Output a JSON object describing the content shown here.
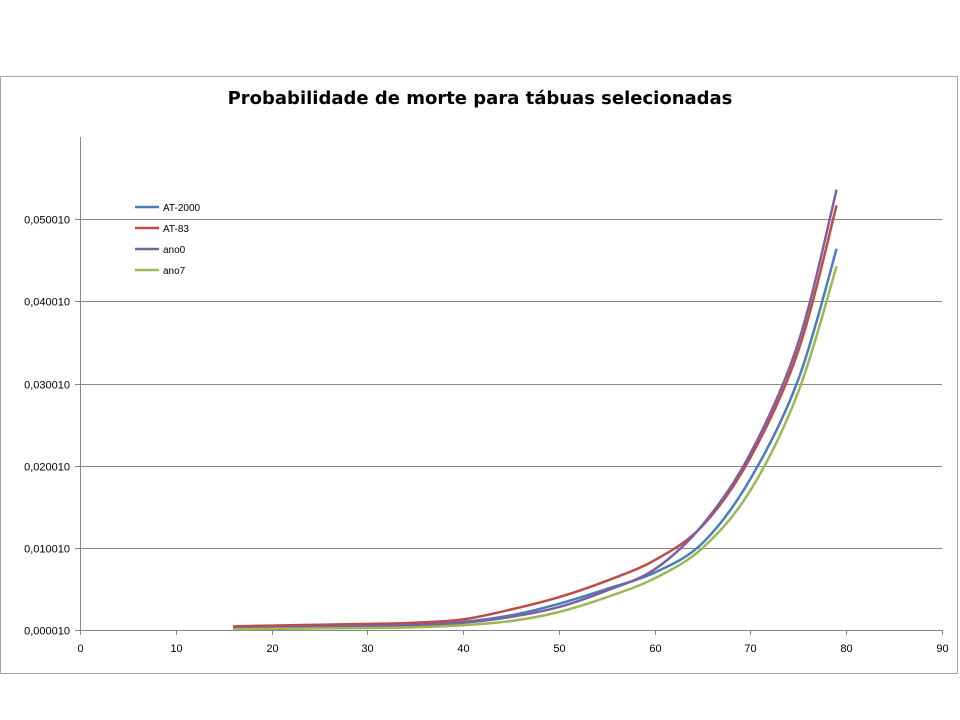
{
  "chart_data": {
    "type": "line",
    "title": "Probabilidade de morte para tábuas selecionadas",
    "xlabel": "",
    "ylabel": "",
    "xlim": [
      0,
      90
    ],
    "ylim": [
      1e-05,
      0.06001
    ],
    "x_ticks": [
      0,
      10,
      20,
      30,
      40,
      50,
      60,
      70,
      80,
      90
    ],
    "y_ticks": [
      "0,000010",
      "0,010010",
      "0,020010",
      "0,030010",
      "0,040010",
      "0,050010"
    ],
    "y_tick_values": [
      1e-05,
      0.01001,
      0.02001,
      0.03001,
      0.04001,
      0.05001
    ],
    "grid": "horizontal",
    "legend_position": "top-left",
    "x": [
      16,
      20,
      25,
      30,
      35,
      40,
      45,
      50,
      55,
      60,
      65,
      70,
      75,
      79
    ],
    "series": [
      {
        "name": "AT-2000",
        "color": "#4a7ebb",
        "values": [
          0.0004,
          0.00045,
          0.00055,
          0.0006,
          0.0007,
          0.001,
          0.0018,
          0.0032,
          0.005,
          0.007,
          0.0106,
          0.0184,
          0.0305,
          0.0464
        ]
      },
      {
        "name": "AT-83",
        "color": "#be4b48",
        "values": [
          0.00045,
          0.00055,
          0.00065,
          0.00075,
          0.0009,
          0.0013,
          0.0025,
          0.004,
          0.006,
          0.0085,
          0.0127,
          0.021,
          0.034,
          0.0517
        ]
      },
      {
        "name": "ano0",
        "color": "#7d60a0",
        "values": [
          0.0002,
          0.0003,
          0.0004,
          0.0005,
          0.0006,
          0.0009,
          0.0016,
          0.0028,
          0.0048,
          0.0074,
          0.0128,
          0.0215,
          0.035,
          0.0536
        ]
      },
      {
        "name": "ano7",
        "color": "#98b954",
        "values": [
          0.0001,
          0.00015,
          0.0002,
          0.00025,
          0.00035,
          0.0006,
          0.0011,
          0.0022,
          0.004,
          0.0063,
          0.01,
          0.017,
          0.029,
          0.0443
        ]
      }
    ]
  }
}
